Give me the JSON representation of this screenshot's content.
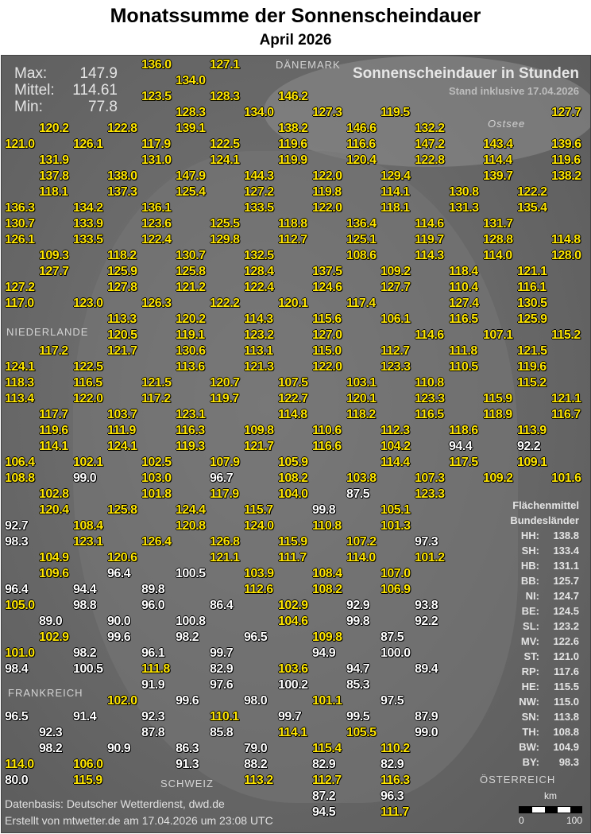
{
  "title": "Monatssumme der Sonnenscheindauer",
  "subtitle": "April 2026",
  "stats": {
    "max_label": "Max:",
    "max": "147.9",
    "mean_label": "Mittel:",
    "mean": "114.61",
    "min_label": "Min:",
    "min": "77.8"
  },
  "map_title": "Sonnenscheindauer in Stunden",
  "stand": "Stand inklusive 17.04.2026",
  "countries": {
    "dk": "DÄNEMARK",
    "nl": "NIEDERLANDE",
    "fr": "FRANKREICH",
    "at": "ÖSTERREICH",
    "ostsee": "Ostsee",
    "ch": "SCHWEIZ"
  },
  "legend": {
    "title1": "Flächenmittel",
    "title2": "Bundesländer",
    "rows": [
      {
        "k": "HH:",
        "v": "138.8"
      },
      {
        "k": "SH:",
        "v": "133.4"
      },
      {
        "k": "HB:",
        "v": "131.1"
      },
      {
        "k": "BB:",
        "v": "125.7"
      },
      {
        "k": "NI:",
        "v": "124.7"
      },
      {
        "k": "BE:",
        "v": "124.5"
      },
      {
        "k": "SL:",
        "v": "123.2"
      },
      {
        "k": "MV:",
        "v": "122.6"
      },
      {
        "k": "ST:",
        "v": "121.0"
      },
      {
        "k": "RP:",
        "v": "117.6"
      },
      {
        "k": "HE:",
        "v": "115.5"
      },
      {
        "k": "NW:",
        "v": "115.0"
      },
      {
        "k": "SN:",
        "v": "113.8"
      },
      {
        "k": "TH:",
        "v": "108.8"
      },
      {
        "k": "BW:",
        "v": "104.9"
      },
      {
        "k": "BY:",
        "v": "98.3"
      }
    ]
  },
  "colors": {
    "high": "#ffe600",
    "low": "#ffffff"
  },
  "stations": [
    "136.0",
    "127.1",
    "134.0",
    "123.5",
    "128.3",
    "146.2",
    "128.3",
    "134.0",
    "127.3",
    "119.5",
    "127.7",
    "120.2",
    "122.8",
    "139.1",
    "138.2",
    "146.6",
    "132.2",
    "121.0",
    "126.1",
    "117.9",
    "122.5",
    "119.6",
    "116.6",
    "147.2",
    "143.4",
    "139.6",
    "131.9",
    "131.0",
    "124.1",
    "119.9",
    "120.4",
    "122.8",
    "114.4",
    "119.6",
    "137.8",
    "138.0",
    "147.9",
    "144.3",
    "122.0",
    "129.4",
    "139.7",
    "138.2",
    "118.1",
    "137.3",
    "125.4",
    "127.2",
    "119.8",
    "114.1",
    "130.8",
    "122.2",
    "136.3",
    "134.2",
    "136.1",
    "133.5",
    "122.0",
    "118.1",
    "131.3",
    "135.4",
    "130.7",
    "133.9",
    "123.6",
    "125.5",
    "118.8",
    "136.4",
    "114.6",
    "131.7",
    "126.1",
    "133.5",
    "122.4",
    "129.8",
    "112.7",
    "125.1",
    "119.7",
    "128.8",
    "114.8",
    "109.3",
    "118.2",
    "130.7",
    "132.5",
    "108.6",
    "114.3",
    "114.0",
    "128.0",
    "127.7",
    "125.9",
    "125.8",
    "128.4",
    "137.5",
    "109.2",
    "118.4",
    "121.1",
    "127.2",
    "127.8",
    "121.2",
    "122.4",
    "124.6",
    "127.7",
    "110.4",
    "116.1",
    "117.0",
    "123.0",
    "126.3",
    "122.2",
    "120.1",
    "117.4",
    "127.4",
    "130.5",
    "113.3",
    "120.2",
    "114.3",
    "115.6",
    "106.1",
    "116.5",
    "125.9",
    "120.5",
    "119.1",
    "123.2",
    "127.0",
    "114.6",
    "107.1",
    "115.2",
    "117.2",
    "121.7",
    "130.6",
    "113.1",
    "115.0",
    "112.7",
    "111.8",
    "121.5",
    "124.1",
    "122.5",
    "113.6",
    "121.3",
    "122.0",
    "123.3",
    "110.5",
    "119.6",
    "118.3",
    "116.5",
    "121.5",
    "120.7",
    "107.5",
    "103.1",
    "110.8",
    "115.2",
    "113.4",
    "122.0",
    "117.2",
    "119.7",
    "122.7",
    "120.1",
    "123.3",
    "115.9",
    "121.1",
    "117.7",
    "103.7",
    "123.1",
    "114.8",
    "118.2",
    "116.5",
    "118.9",
    "116.7",
    "119.6",
    "111.9",
    "116.3",
    "109.8",
    "110.6",
    "112.3",
    "118.6",
    "113.9",
    "114.1",
    "124.1",
    "119.3",
    "121.7",
    "116.6",
    "104.2",
    "94.4",
    "92.2",
    "106.4",
    "102.1",
    "102.5",
    "107.9",
    "105.9",
    "114.4",
    "117.5",
    "109.1",
    "108.8",
    "99.0",
    "103.0",
    "96.7",
    "108.2",
    "103.8",
    "107.3",
    "109.2",
    "101.6",
    "102.8",
    "101.8",
    "117.9",
    "104.0",
    "87.5",
    "123.3",
    "120.4",
    "125.8",
    "124.4",
    "115.7",
    "99.8",
    "105.1",
    "92.7",
    "108.4",
    "120.8",
    "124.0",
    "110.8",
    "101.3",
    "98.3",
    "123.1",
    "126.4",
    "126.8",
    "115.9",
    "107.2",
    "97.3",
    "104.9",
    "120.6",
    "121.1",
    "111.7",
    "114.0",
    "101.2",
    "109.6",
    "96.4",
    "100.5",
    "103.9",
    "108.4",
    "107.0",
    "96.4",
    "94.4",
    "89.8",
    "112.6",
    "108.2",
    "106.9",
    "105.0",
    "98.8",
    "96.0",
    "86.4",
    "102.9",
    "92.9",
    "93.8",
    "89.0",
    "90.0",
    "100.8",
    "104.6",
    "99.8",
    "92.2",
    "102.9",
    "99.6",
    "98.2",
    "96.5",
    "109.8",
    "87.5",
    "101.0",
    "98.2",
    "96.1",
    "99.7",
    "94.9",
    "100.0",
    "98.4",
    "100.5",
    "111.8",
    "82.9",
    "103.6",
    "94.7",
    "89.4",
    "91.9",
    "97.6",
    "100.2",
    "85.3",
    "102.0",
    "99.6",
    "98.0",
    "101.1",
    "97.5",
    "96.5",
    "91.4",
    "92.3",
    "110.1",
    "99.7",
    "99.5",
    "87.9",
    "92.3",
    "87.8",
    "85.8",
    "114.1",
    "105.5",
    "99.0",
    "98.2",
    "90.9",
    "86.3",
    "79.0",
    "115.4",
    "110.2",
    "114.0",
    "106.0",
    "91.3",
    "88.2",
    "82.9",
    "82.9",
    "80.0",
    "115.9",
    "113.2",
    "112.7",
    "116.3",
    "87.2",
    "96.3",
    "94.5",
    "111.7"
  ]
}
